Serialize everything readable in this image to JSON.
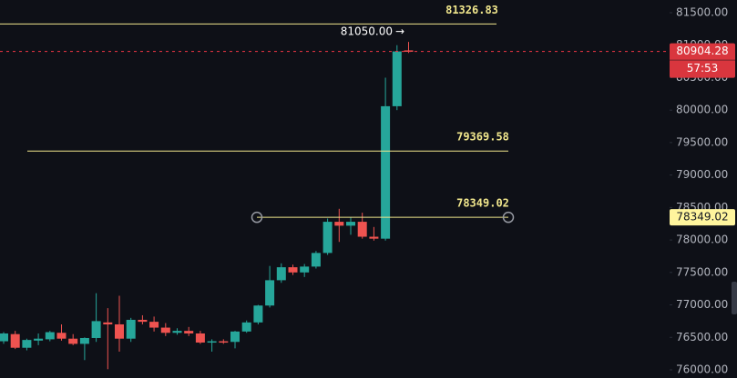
{
  "chart_data": {
    "type": "candlestick",
    "open": [
      76440,
      76550,
      76340,
      76450,
      76470,
      76570,
      76480,
      76400,
      76490,
      76730,
      76700,
      76480,
      76770,
      76740,
      76650,
      76570,
      76600,
      76560,
      76420,
      76440,
      76430,
      76590,
      76730,
      76990,
      77380,
      77580,
      77500,
      77590,
      77800,
      78280,
      78220,
      78280,
      78050,
      78020,
      80060,
      80920
    ],
    "high": [
      76580,
      76600,
      76480,
      76560,
      76600,
      76700,
      76550,
      76500,
      77180,
      76950,
      77140,
      76800,
      76840,
      76820,
      76720,
      76640,
      76660,
      76600,
      76470,
      76470,
      76600,
      76760,
      77000,
      77600,
      77640,
      77620,
      77630,
      77830,
      78330,
      78480,
      78350,
      78420,
      78200,
      80500,
      81000,
      81050
    ],
    "low": [
      76400,
      76320,
      76300,
      76380,
      76440,
      76450,
      76380,
      76150,
      76430,
      76010,
      76280,
      76430,
      76700,
      76590,
      76520,
      76540,
      76520,
      76400,
      76280,
      76400,
      76330,
      76570,
      76700,
      76960,
      77340,
      77460,
      77430,
      77560,
      77770,
      77970,
      78080,
      78020,
      77990,
      77990,
      80000,
      80880
    ],
    "close": [
      76560,
      76340,
      76460,
      76480,
      76580,
      76480,
      76400,
      76490,
      76750,
      76700,
      76480,
      76770,
      76740,
      76650,
      76570,
      76600,
      76560,
      76420,
      76440,
      76430,
      76590,
      76730,
      76990,
      77380,
      77580,
      77500,
      77590,
      77800,
      78280,
      78220,
      78280,
      78050,
      78020,
      80060,
      80904.28,
      80904.28
    ],
    "up_color": "#26a69a",
    "down_color": "#ef5350",
    "ylim": [
      75874,
      81696
    ],
    "yticks": [
      {
        "value": 76000,
        "label": "76000.00"
      },
      {
        "value": 76500,
        "label": "76500.00"
      },
      {
        "value": 77000,
        "label": "77000.00"
      },
      {
        "value": 77500,
        "label": "77500.00"
      },
      {
        "value": 78000,
        "label": "78000.00"
      },
      {
        "value": 78500,
        "label": "78500.00"
      },
      {
        "value": 79000,
        "label": "79000.00"
      },
      {
        "value": 79500,
        "label": "79500.00"
      },
      {
        "value": 80000,
        "label": "80000.00"
      },
      {
        "value": 80500,
        "label": "80500.00"
      },
      {
        "value": 81000,
        "label": "81000.00"
      },
      {
        "value": 81500,
        "label": "81500.00"
      }
    ],
    "levels": [
      81326.83,
      79369.58,
      78349.02
    ],
    "level_color": "#f0e68c",
    "current_price": 80904.28,
    "countdown": "57:53",
    "high_marker": {
      "value": 81050,
      "label": "81050.00"
    },
    "high_arrow": "→"
  }
}
